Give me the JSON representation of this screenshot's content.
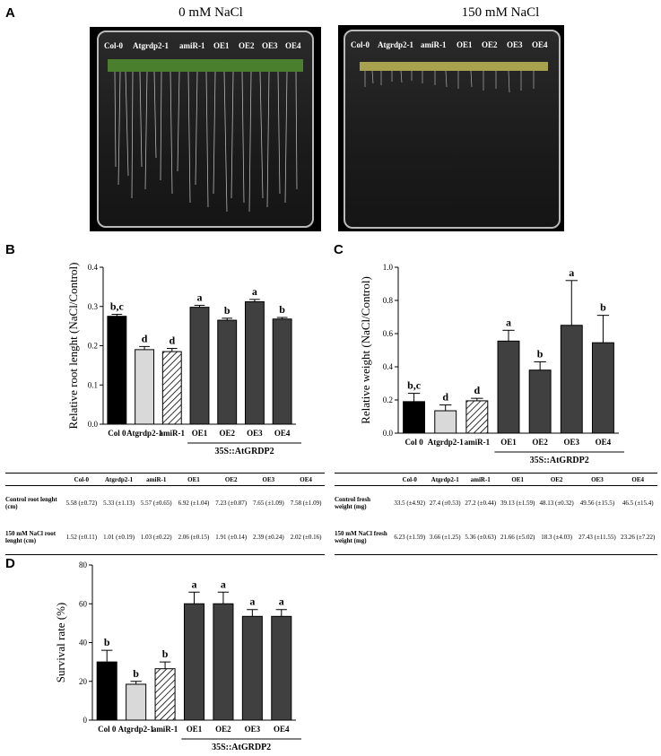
{
  "panel_a": {
    "letter": "A",
    "plates": [
      {
        "title": "0 mM NaCl",
        "labels": [
          "Col-0",
          "Atgrdp2-1",
          "amiR-1",
          "OE1",
          "OE2",
          "OE3",
          "OE4"
        ]
      },
      {
        "title": "150 mM NaCl",
        "labels": [
          "Col-0",
          "Atgrdp2-1",
          "amiR-1",
          "OE1",
          "OE2",
          "OE3",
          "OE4"
        ]
      }
    ]
  },
  "panel_b": {
    "letter": "B",
    "table": {
      "columns": [
        "Col-0",
        "Atgrdp2-1",
        "amiR-1",
        "OE1",
        "OE2",
        "OE3",
        "OE4"
      ],
      "rows": [
        {
          "label": "Control root lenght (cm)",
          "values": [
            "5.58 (±0.72)",
            "5.33 (±1.13)",
            "5.57 (±0.65)",
            "6.92 (±1.04)",
            "7.23 (±0.87)",
            "7.65 (±1.09)",
            "7.58 (±1.09)"
          ]
        },
        {
          "label": "150 mM NaCl root lenght (cm)",
          "values": [
            "1.52 (±0.11)",
            "1.01 (±0.19)",
            "1.03 (±0.22)",
            "2.06 (±0.15)",
            "1.91 (±0.14)",
            "2.39 (±0.24)",
            "2.02 (±0.16)"
          ]
        }
      ]
    }
  },
  "panel_c": {
    "letter": "C",
    "table": {
      "columns": [
        "Col-0",
        "Atgrdp2-1",
        "amiR-1",
        "OE1",
        "OE2",
        "OE3",
        "OE4"
      ],
      "rows": [
        {
          "label": "Control fresh weight (mg)",
          "values": [
            "33.5 (±4.92)",
            "27.4 (±0.53)",
            "27.2 (±0.44)",
            "39.13 (±1.59)",
            "48.13 (±0.32)",
            "49.56 (±15.5)",
            "46.5 (±15.4)"
          ]
        },
        {
          "label": "150 mM NaCl fresh weight (mg)",
          "values": [
            "6.23 (±1.59)",
            "3.66 (±1.25)",
            "5.36 (±0.63)",
            "21.66 (±5.02)",
            "18.3 (±4.03)",
            "27.43 (±11.55)",
            "23.26 (±7.22)"
          ]
        }
      ]
    }
  },
  "panel_d": {
    "letter": "D"
  },
  "colors": {
    "col0": "#000000",
    "mutant": "#d9d9d9",
    "amir": "#ffffff",
    "oe": "#404040"
  },
  "chart_data": [
    {
      "type": "bar",
      "panel": "B",
      "categories": [
        "Col 0",
        "Atgrdp2-1",
        "amiR-1",
        "OE1",
        "OE2",
        "OE3",
        "OE4"
      ],
      "values": [
        0.275,
        0.19,
        0.185,
        0.298,
        0.265,
        0.312,
        0.268
      ],
      "errors": [
        0.005,
        0.008,
        0.008,
        0.005,
        0.005,
        0.006,
        0.004
      ],
      "significance": [
        "b,c",
        "d",
        "d",
        "a",
        "b",
        "a",
        "b"
      ],
      "ylabel": "Relative root lenght (NaCl/Control)",
      "ylim": [
        0,
        0.4
      ],
      "yticks": [
        "0.0",
        "0.1",
        "0.2",
        "0.3",
        "0.4"
      ],
      "group_label": "35S::AtGRDP2"
    },
    {
      "type": "bar",
      "panel": "C",
      "categories": [
        "Col 0",
        "Atgrdp2-1",
        "amiR-1",
        "OE1",
        "OE2",
        "OE3",
        "OE4"
      ],
      "values": [
        0.19,
        0.135,
        0.195,
        0.555,
        0.38,
        0.65,
        0.545
      ],
      "errors": [
        0.05,
        0.035,
        0.015,
        0.065,
        0.05,
        0.27,
        0.165
      ],
      "significance": [
        "b,c",
        "d",
        "d",
        "a",
        "b",
        "a",
        "b"
      ],
      "ylabel": "Relative weight (NaCl/Control)",
      "ylim": [
        0,
        1.0
      ],
      "yticks": [
        "0.0",
        "0.2",
        "0.4",
        "0.6",
        "0.8",
        "1.0"
      ],
      "group_label": "35S::AtGRDP2"
    },
    {
      "type": "bar",
      "panel": "D",
      "categories": [
        "Col 0",
        "Atgrdp2-1",
        "amiR-1",
        "OE1",
        "OE2",
        "OE3",
        "OE4"
      ],
      "values": [
        30,
        18.5,
        26.5,
        60,
        60,
        53.5,
        53.5
      ],
      "errors": [
        6,
        1.5,
        3.5,
        6,
        6,
        3.5,
        3.5
      ],
      "significance": [
        "b",
        "b",
        "b",
        "a",
        "a",
        "a",
        "a"
      ],
      "ylabel": "Survival rate (%)",
      "ylim": [
        0,
        80
      ],
      "yticks": [
        "0",
        "20",
        "40",
        "60",
        "80"
      ],
      "group_label": "35S::AtGRDP2"
    }
  ]
}
